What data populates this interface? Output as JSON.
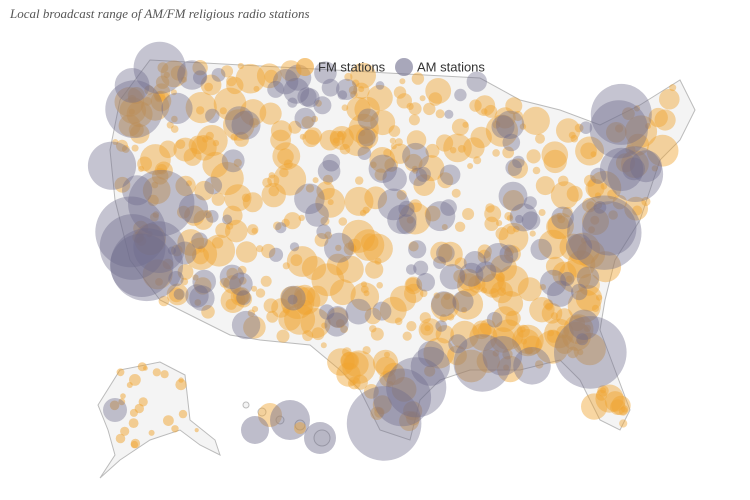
{
  "title": "Local broadcast range of AM/FM religious radio stations",
  "legend": [
    {
      "label": "FM stations",
      "color": "#f0a330"
    },
    {
      "label": "AM stations",
      "color": "#6e6c8c"
    }
  ]
}
